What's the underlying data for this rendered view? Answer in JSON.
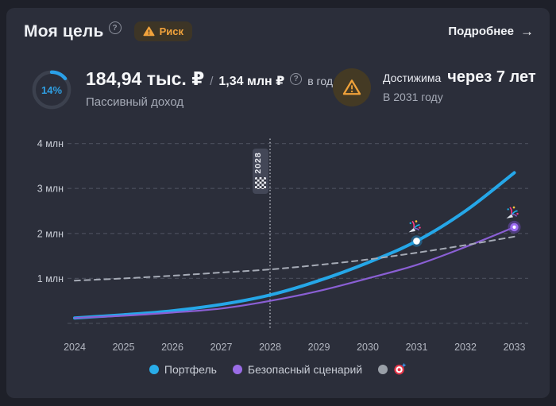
{
  "header": {
    "title": "Моя цель",
    "help_glyph": "?",
    "risk_badge": {
      "label": "Риск"
    },
    "details_link": {
      "label": "Подробнее",
      "arrow": "→"
    }
  },
  "stats": {
    "progress": {
      "percent": 14,
      "label": "14%"
    },
    "income": {
      "current": "184,94 тыс. ₽",
      "separator": "/",
      "target": "1,34 млн ₽",
      "help_glyph": "?",
      "suffix": "в год",
      "caption": "Пассивный доход"
    },
    "forecast": {
      "prefix": "Достижима",
      "highlight": "через 7 лет",
      "sub": "В 2031 году"
    }
  },
  "chart_data": {
    "type": "line",
    "categories": [
      2024,
      2025,
      2026,
      2027,
      2028,
      2029,
      2030,
      2031,
      2032,
      2033
    ],
    "y_ticks": [
      {
        "value": 4,
        "label": "4 млн"
      },
      {
        "value": 3,
        "label": "3 млн"
      },
      {
        "value": 2,
        "label": "2 млн"
      },
      {
        "value": 1,
        "label": "1 млн"
      },
      {
        "value": 0,
        "label": ""
      }
    ],
    "ylim": [
      0,
      4.3
    ],
    "unit": "млн ₽",
    "series": [
      {
        "name": "Портфель",
        "color": "#25a7e8",
        "width": 4,
        "style": "solid",
        "values": [
          0.12,
          0.19,
          0.28,
          0.42,
          0.63,
          0.95,
          1.35,
          1.83,
          2.5,
          3.35
        ]
      },
      {
        "name": "Безопасный сценарий",
        "color": "#8a5fd4",
        "width": 2.2,
        "style": "solid",
        "values": [
          0.12,
          0.17,
          0.24,
          0.33,
          0.5,
          0.72,
          1.0,
          1.3,
          1.7,
          2.14
        ]
      },
      {
        "role": "goal-line",
        "color": "#a6abb6",
        "width": 2,
        "style": "dashed",
        "values": [
          0.95,
          1.0,
          1.06,
          1.13,
          1.2,
          1.3,
          1.42,
          1.57,
          1.74,
          1.93
        ]
      }
    ],
    "milestone_line": {
      "year": 2028,
      "label": "2028",
      "icon": "checkered-flag"
    },
    "markers": [
      {
        "year": 2031,
        "value": 1.83,
        "dot": "white",
        "icon": "confetti"
      },
      {
        "year": 2033,
        "value": 2.14,
        "dot": "purple",
        "icon": "confetti"
      }
    ],
    "legend": [
      {
        "label": "Портфель",
        "color": "#29ade9"
      },
      {
        "label": "Безопасный сценарий",
        "color": "#9a6ce6"
      },
      {
        "label": "",
        "color": "#9aa0a8",
        "icon": "target"
      }
    ]
  }
}
